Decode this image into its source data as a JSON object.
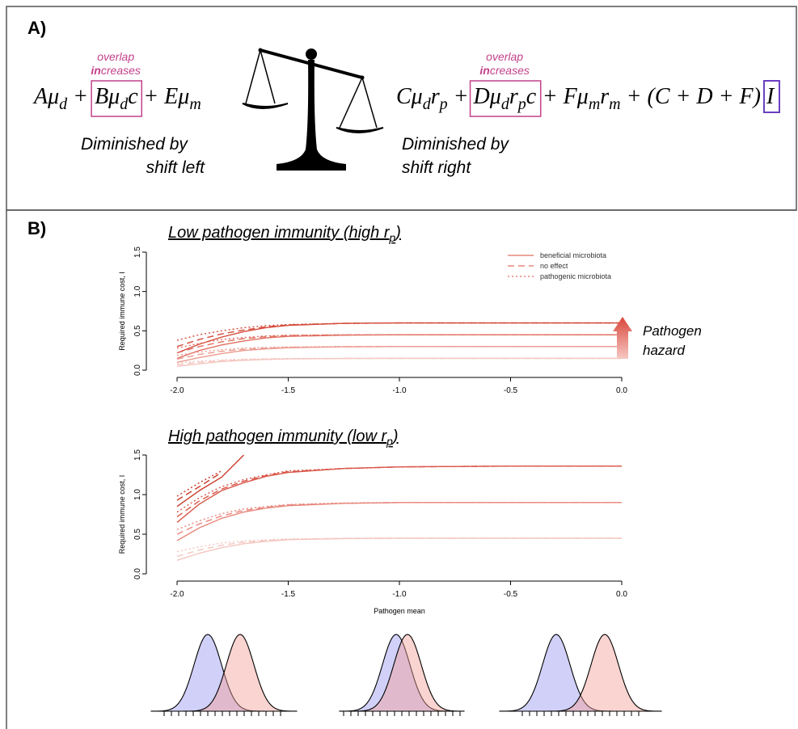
{
  "panel_a": {
    "label": "A)",
    "left_equation": {
      "pre": [
        {
          "text": "Aμ",
          "sub": "d"
        },
        {
          "text": " + "
        }
      ],
      "boxed": [
        {
          "text": "Bμ",
          "sub": "d"
        },
        {
          "text": "c"
        }
      ],
      "post": [
        {
          "text": " + "
        },
        {
          "text": "Eμ",
          "sub": "m"
        }
      ]
    },
    "right_equation": {
      "pre": [
        {
          "text": "Cμ",
          "sub": "d"
        },
        {
          "text": "r",
          "sub": "p"
        },
        {
          "text": " + "
        }
      ],
      "boxed": [
        {
          "text": "Dμ",
          "sub": "d"
        },
        {
          "text": "r",
          "sub": "p"
        },
        {
          "text": "c"
        }
      ],
      "post": [
        {
          "text": " + "
        },
        {
          "text": "Fμ",
          "sub": "m"
        },
        {
          "text": "r",
          "sub": "m"
        },
        {
          "text": " + (C + D + F)"
        }
      ],
      "boxed2": [
        {
          "text": "I"
        }
      ]
    },
    "left_note": {
      "line1": "overlap",
      "bold": "in",
      "rest": "creases"
    },
    "right_note": {
      "line1": "overlap",
      "bold": "in",
      "rest": "creases"
    },
    "left_caption": [
      "Diminished by",
      "shift left"
    ],
    "right_caption": [
      "Diminished by",
      "shift right"
    ]
  },
  "panel_b": {
    "label": "B)"
  },
  "chart_data": [
    {
      "type": "line",
      "title": "Low pathogen immunity (high r",
      "title_sub": "p",
      "title_end": ")",
      "y_label": "Required immune cost, I",
      "x": [
        -2.0,
        -1.9,
        -1.8,
        -1.7,
        -1.6,
        -1.5,
        -1.25,
        -1.0,
        -0.5,
        0.0
      ],
      "xlim": [
        -2.0,
        0.0
      ],
      "ylim": [
        0,
        1.5
      ],
      "xticks": [
        {
          "value": -2,
          "label": "-2.0"
        },
        {
          "value": -1.5,
          "label": "-1.5"
        },
        {
          "value": -1,
          "label": "-1.0"
        },
        {
          "value": -0.5,
          "label": "-0.5"
        },
        {
          "value": 0,
          "label": "0.0"
        }
      ],
      "yticks": [
        {
          "value": 0,
          "label": "0.0"
        },
        {
          "value": 0.5,
          "label": "0.5"
        },
        {
          "value": 1,
          "label": "1.0"
        },
        {
          "value": 1.5,
          "label": "1.5"
        }
      ],
      "legend": [
        {
          "label": "beneficial microbiota",
          "style": "solid"
        },
        {
          "label": "no effect",
          "style": "dashed"
        },
        {
          "label": "pathogenic microbiota",
          "style": "dotted"
        }
      ],
      "legend_color": "#e06f60",
      "annotation": [
        "Pathogen",
        "hazard"
      ],
      "series": [
        {
          "color": "#d44a3a",
          "style": "solid",
          "values": [
            0.22,
            0.33,
            0.42,
            0.49,
            0.54,
            0.57,
            0.595,
            0.6,
            0.6,
            0.6
          ]
        },
        {
          "color": "#d44a3a",
          "style": "dashed",
          "values": [
            0.3,
            0.39,
            0.46,
            0.51,
            0.55,
            0.575,
            0.595,
            0.6,
            0.6,
            0.6
          ]
        },
        {
          "color": "#d44a3a",
          "style": "dotted",
          "values": [
            0.38,
            0.45,
            0.5,
            0.54,
            0.565,
            0.58,
            0.595,
            0.6,
            0.6,
            0.6
          ]
        },
        {
          "color": "#e06f60",
          "style": "solid",
          "values": [
            0.15,
            0.25,
            0.32,
            0.37,
            0.41,
            0.43,
            0.445,
            0.45,
            0.45,
            0.45
          ]
        },
        {
          "color": "#e06f60",
          "style": "dashed",
          "values": [
            0.22,
            0.3,
            0.36,
            0.4,
            0.425,
            0.44,
            0.448,
            0.45,
            0.45,
            0.45
          ]
        },
        {
          "color": "#e06f60",
          "style": "dotted",
          "values": [
            0.28,
            0.34,
            0.39,
            0.415,
            0.435,
            0.445,
            0.45,
            0.45,
            0.45,
            0.45
          ]
        },
        {
          "color": "#ec9a8f",
          "style": "solid",
          "values": [
            0.1,
            0.16,
            0.21,
            0.25,
            0.27,
            0.285,
            0.297,
            0.3,
            0.3,
            0.3
          ]
        },
        {
          "color": "#ec9a8f",
          "style": "dashed",
          "values": [
            0.14,
            0.2,
            0.24,
            0.265,
            0.28,
            0.29,
            0.298,
            0.3,
            0.3,
            0.3
          ]
        },
        {
          "color": "#ec9a8f",
          "style": "dotted",
          "values": [
            0.19,
            0.23,
            0.26,
            0.28,
            0.29,
            0.295,
            0.3,
            0.3,
            0.3,
            0.3
          ]
        },
        {
          "color": "#f4c6c0",
          "style": "solid",
          "values": [
            0.05,
            0.08,
            0.11,
            0.125,
            0.135,
            0.143,
            0.148,
            0.15,
            0.15,
            0.15
          ]
        },
        {
          "color": "#f4c6c0",
          "style": "dashed",
          "values": [
            0.07,
            0.1,
            0.12,
            0.132,
            0.14,
            0.145,
            0.149,
            0.15,
            0.15,
            0.15
          ]
        },
        {
          "color": "#f4c6c0",
          "style": "dotted",
          "values": [
            0.09,
            0.115,
            0.13,
            0.14,
            0.145,
            0.148,
            0.15,
            0.15,
            0.15,
            0.15
          ]
        }
      ]
    },
    {
      "type": "line",
      "title": "High pathogen immunity (low r",
      "title_sub": "p",
      "title_end": ")",
      "y_label": "Required immune cost, I",
      "x_label": "Pathogen mean",
      "x": [
        -2.0,
        -1.9,
        -1.8,
        -1.7,
        -1.6,
        -1.5,
        -1.25,
        -1.0,
        -0.5,
        0.0
      ],
      "xlim": [
        -2.0,
        0.0
      ],
      "ylim": [
        0,
        1.5
      ],
      "xticks": [
        {
          "value": -2,
          "label": "-2.0"
        },
        {
          "value": -1.5,
          "label": "-1.5"
        },
        {
          "value": -1,
          "label": "-1.0"
        },
        {
          "value": -0.5,
          "label": "-0.5"
        },
        {
          "value": 0,
          "label": "0.0"
        }
      ],
      "yticks": [
        {
          "value": 0,
          "label": "0.0"
        },
        {
          "value": 0.5,
          "label": "0.5"
        },
        {
          "value": 1,
          "label": "1.0"
        },
        {
          "value": 1.5,
          "label": "1.5"
        }
      ],
      "series": [
        {
          "color": "#c93a2a",
          "style": "solid",
          "values": [
            0.85,
            1.05,
            1.22,
            1.5,
            null,
            null,
            null,
            null,
            null,
            null
          ]
        },
        {
          "color": "#c93a2a",
          "style": "dashed",
          "values": [
            0.93,
            1.1,
            1.28,
            null,
            null,
            null,
            null,
            null,
            null,
            null
          ]
        },
        {
          "color": "#c93a2a",
          "style": "dotted",
          "values": [
            0.98,
            1.15,
            1.3,
            null,
            null,
            null,
            null,
            null,
            null,
            null
          ]
        },
        {
          "color": "#d9574a",
          "style": "solid",
          "values": [
            0.65,
            0.88,
            1.05,
            1.15,
            1.23,
            1.28,
            1.33,
            1.35,
            1.36,
            1.36
          ]
        },
        {
          "color": "#d9574a",
          "style": "dashed",
          "values": [
            0.72,
            0.92,
            1.07,
            1.17,
            1.24,
            1.29,
            1.33,
            1.35,
            1.36,
            1.36
          ]
        },
        {
          "color": "#d9574a",
          "style": "dotted",
          "values": [
            0.78,
            0.96,
            1.1,
            1.19,
            1.25,
            1.3,
            1.33,
            1.35,
            1.36,
            1.36
          ]
        },
        {
          "color": "#e8877c",
          "style": "solid",
          "values": [
            0.42,
            0.58,
            0.7,
            0.78,
            0.83,
            0.86,
            0.89,
            0.9,
            0.9,
            0.9
          ]
        },
        {
          "color": "#e8877c",
          "style": "dashed",
          "values": [
            0.5,
            0.63,
            0.73,
            0.8,
            0.84,
            0.87,
            0.89,
            0.9,
            0.9,
            0.9
          ]
        },
        {
          "color": "#e8877c",
          "style": "dotted",
          "values": [
            0.56,
            0.67,
            0.76,
            0.82,
            0.85,
            0.875,
            0.895,
            0.9,
            0.9,
            0.9
          ]
        },
        {
          "color": "#f4c6c0",
          "style": "solid",
          "values": [
            0.17,
            0.26,
            0.33,
            0.38,
            0.41,
            0.43,
            0.445,
            0.45,
            0.45,
            0.45
          ]
        },
        {
          "color": "#f4c6c0",
          "style": "dashed",
          "values": [
            0.22,
            0.3,
            0.36,
            0.4,
            0.42,
            0.435,
            0.447,
            0.45,
            0.45,
            0.45
          ]
        },
        {
          "color": "#f4c6c0",
          "style": "dotted",
          "values": [
            0.28,
            0.34,
            0.39,
            0.415,
            0.43,
            0.44,
            0.448,
            0.45,
            0.45,
            0.45
          ]
        }
      ]
    }
  ]
}
